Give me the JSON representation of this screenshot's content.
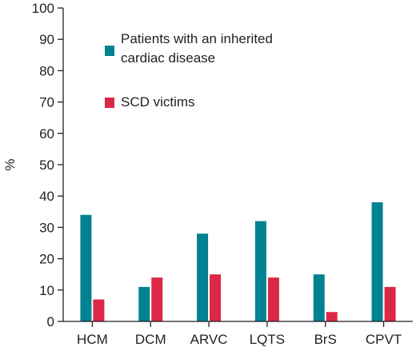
{
  "chart_data": {
    "type": "bar",
    "title": "",
    "xlabel": "",
    "ylabel": "%",
    "ylim": [
      0,
      100
    ],
    "yticks": [
      0,
      10,
      20,
      30,
      40,
      50,
      60,
      70,
      80,
      90,
      100
    ],
    "grid": false,
    "legend_position": "top-left",
    "categories": [
      "HCM",
      "DCM",
      "ARVC",
      "LQTS",
      "BrS",
      "CPVT"
    ],
    "series": [
      {
        "name_lines": [
          "Patients with an inherited",
          "cardiac disease"
        ],
        "color": "#008291",
        "values": [
          34,
          11,
          28,
          32,
          15,
          38
        ]
      },
      {
        "name_lines": [
          "SCD victims"
        ],
        "color": "#dc2846",
        "values": [
          7,
          14,
          15,
          14,
          3,
          11
        ]
      }
    ]
  }
}
